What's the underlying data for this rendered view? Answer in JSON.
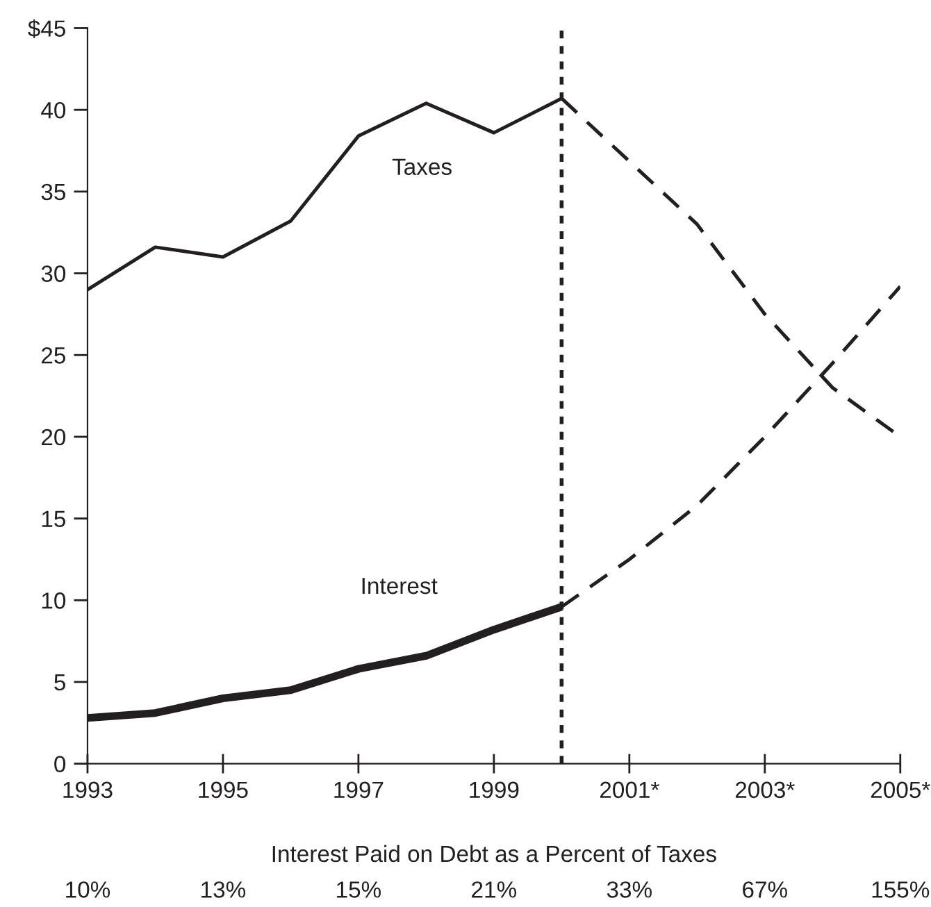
{
  "chart_data": {
    "type": "line",
    "xlabel": "Interest Paid on Debt as a Percent of Taxes",
    "series": [
      {
        "name": "Taxes",
        "color": "#231f20",
        "line_style": "solid",
        "x": [
          1993,
          1994,
          1995,
          1996,
          1997,
          1998,
          1999,
          2000
        ],
        "values": [
          29.0,
          31.6,
          31.0,
          33.2,
          38.4,
          40.4,
          38.6,
          40.7
        ]
      },
      {
        "color": "#231f20",
        "line_style": "dashed",
        "x": [
          2000,
          2002,
          2003,
          2004,
          2005
        ],
        "values": [
          40.7,
          33.0,
          27.5,
          23.0,
          20.0
        ]
      },
      {
        "name": "Interest",
        "color": "#231f20",
        "line_style": "solid",
        "x": [
          1993,
          1994,
          1995,
          1996,
          1997,
          1998,
          1999,
          2000
        ],
        "values": [
          2.8,
          3.1,
          4.0,
          4.5,
          5.8,
          6.6,
          8.2,
          9.6
        ]
      },
      {
        "color": "#231f20",
        "line_style": "dashed",
        "x": [
          2000,
          2001,
          2002,
          2003,
          2004,
          2005
        ],
        "values": [
          9.6,
          12.5,
          15.8,
          20.0,
          24.5,
          29.2
        ]
      }
    ],
    "xlim": [
      1993,
      2005
    ],
    "xticks": [
      1993,
      1995,
      1997,
      1999,
      {
        "value": 2001,
        "label": "2001*"
      },
      {
        "value": 2003,
        "label": "2003*"
      },
      {
        "value": 2005,
        "label": "2005*"
      }
    ],
    "ylim": [
      0,
      45
    ],
    "yticks": [
      0,
      5,
      10,
      15,
      20,
      25,
      30,
      35,
      40,
      {
        "value": 45,
        "label": "$45"
      }
    ],
    "ref_lines": [
      {
        "axis": "x",
        "value": 2000,
        "color": "#231f20",
        "line_style": "dotted"
      }
    ],
    "annotations": [
      "10%",
      "13%",
      "15%",
      "21%",
      "33%",
      "67%",
      "155%"
    ],
    "grid": false,
    "legend": false,
    "marker": "none"
  }
}
